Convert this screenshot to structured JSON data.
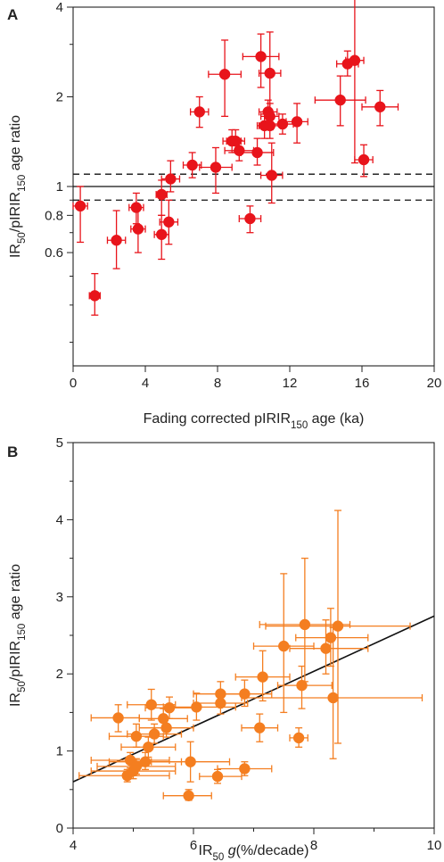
{
  "chart_data": [
    {
      "panel_label": "A",
      "type": "scatter",
      "title": "",
      "xlabel_parts": [
        "Fading corrected pIRIR",
        "150",
        " age (ka)"
      ],
      "ylabel_parts": [
        "IR",
        "50",
        "/pIRIR",
        "150",
        " age ratio"
      ],
      "x_range": [
        0,
        20
      ],
      "y_range": [
        0.25,
        4
      ],
      "y_scale": "log",
      "x_ticks": [
        0,
        4,
        8,
        12,
        16,
        20
      ],
      "x_tick_labels": [
        "0",
        "4",
        "8",
        "12",
        "16",
        "20"
      ],
      "y_ticks": [
        0.6,
        0.8,
        1,
        2,
        4
      ],
      "y_tick_labels": [
        "0.6",
        "0.8",
        "1",
        "2",
        "4"
      ],
      "y_minor_ticks": [
        0.3,
        0.4,
        0.5,
        0.7,
        0.9,
        3
      ],
      "color": "#e8141b",
      "reference_lines": [
        {
          "y": 1.0,
          "style": "solid"
        },
        {
          "y": 1.1,
          "style": "dashed"
        },
        {
          "y": 0.9,
          "style": "dashed"
        }
      ],
      "points": [
        {
          "x": 0.4,
          "y": 0.86,
          "xerr": 0.4,
          "ylo": 0.65,
          "yhi": 1.0
        },
        {
          "x": 1.2,
          "y": 0.43,
          "xerr": 0.3,
          "ylo": 0.37,
          "yhi": 0.51
        },
        {
          "x": 2.4,
          "y": 0.66,
          "xerr": 0.5,
          "ylo": 0.53,
          "yhi": 0.83
        },
        {
          "x": 3.5,
          "y": 0.85,
          "xerr": 0.4,
          "ylo": 0.75,
          "yhi": 0.95
        },
        {
          "x": 3.6,
          "y": 0.72,
          "xerr": 0.4,
          "ylo": 0.6,
          "yhi": 0.84
        },
        {
          "x": 4.9,
          "y": 0.94,
          "xerr": 0.3,
          "ylo": 0.8,
          "yhi": 1.05
        },
        {
          "x": 4.9,
          "y": 0.69,
          "xerr": 0.4,
          "ylo": 0.57,
          "yhi": 0.8
        },
        {
          "x": 5.3,
          "y": 0.76,
          "xerr": 0.5,
          "ylo": 0.64,
          "yhi": 0.9
        },
        {
          "x": 5.4,
          "y": 1.06,
          "xerr": 0.5,
          "ylo": 0.96,
          "yhi": 1.22
        },
        {
          "x": 6.6,
          "y": 1.18,
          "xerr": 0.5,
          "ylo": 1.07,
          "yhi": 1.3
        },
        {
          "x": 7.0,
          "y": 1.78,
          "xerr": 0.5,
          "ylo": 1.58,
          "yhi": 2.0
        },
        {
          "x": 7.9,
          "y": 1.16,
          "xerr": 0.9,
          "ylo": 0.95,
          "yhi": 1.35
        },
        {
          "x": 8.4,
          "y": 2.38,
          "xerr": 0.9,
          "ylo": 1.72,
          "yhi": 3.1
        },
        {
          "x": 8.8,
          "y": 1.42,
          "xerr": 0.5,
          "ylo": 1.3,
          "yhi": 1.55
        },
        {
          "x": 9.0,
          "y": 1.42,
          "xerr": 0.5,
          "ylo": 1.3,
          "yhi": 1.55
        },
        {
          "x": 9.2,
          "y": 1.32,
          "xerr": 0.8,
          "ylo": 1.22,
          "yhi": 1.43
        },
        {
          "x": 9.8,
          "y": 0.78,
          "xerr": 0.6,
          "ylo": 0.7,
          "yhi": 0.86
        },
        {
          "x": 10.2,
          "y": 1.3,
          "xerr": 0.9,
          "ylo": 1.18,
          "yhi": 1.45
        },
        {
          "x": 10.4,
          "y": 2.73,
          "xerr": 1.0,
          "ylo": 2.15,
          "yhi": 3.25
        },
        {
          "x": 10.6,
          "y": 1.6,
          "xerr": 0.4,
          "ylo": 1.45,
          "yhi": 1.75
        },
        {
          "x": 10.8,
          "y": 1.78,
          "xerr": 0.5,
          "ylo": 1.6,
          "yhi": 1.95
        },
        {
          "x": 10.9,
          "y": 2.4,
          "xerr": 0.6,
          "ylo": 1.75,
          "yhi": 3.3
        },
        {
          "x": 10.9,
          "y": 1.72,
          "xerr": 0.5,
          "ylo": 1.55,
          "yhi": 1.9
        },
        {
          "x": 10.9,
          "y": 1.6,
          "xerr": 0.6,
          "ylo": 1.45,
          "yhi": 1.75
        },
        {
          "x": 11.0,
          "y": 1.09,
          "xerr": 0.6,
          "ylo": 0.88,
          "yhi": 1.4
        },
        {
          "x": 11.6,
          "y": 1.62,
          "xerr": 0.6,
          "ylo": 1.5,
          "yhi": 1.75
        },
        {
          "x": 12.4,
          "y": 1.65,
          "xerr": 0.6,
          "ylo": 1.4,
          "yhi": 1.9
        },
        {
          "x": 14.8,
          "y": 1.95,
          "xerr": 1.4,
          "ylo": 1.6,
          "yhi": 2.35
        },
        {
          "x": 15.2,
          "y": 2.58,
          "xerr": 0.6,
          "ylo": 2.35,
          "yhi": 2.85
        },
        {
          "x": 15.6,
          "y": 2.65,
          "xerr": 0.5,
          "ylo": 1.2,
          "yhi": 4.3
        },
        {
          "x": 16.1,
          "y": 1.23,
          "xerr": 0.5,
          "ylo": 1.08,
          "yhi": 1.38
        },
        {
          "x": 17.0,
          "y": 1.85,
          "xerr": 1.0,
          "ylo": 1.6,
          "yhi": 2.1
        }
      ]
    },
    {
      "panel_label": "B",
      "type": "scatter",
      "title": "",
      "xlabel_parts": [
        "IR",
        "50",
        " ",
        "g",
        "(%/decade)"
      ],
      "ylabel_parts": [
        "IR",
        "50",
        "/pIRIR",
        "150",
        " age ratio"
      ],
      "x_range": [
        4,
        10
      ],
      "y_range": [
        0,
        5
      ],
      "y_scale": "linear",
      "x_ticks": [
        4,
        6,
        8,
        10
      ],
      "x_tick_labels": [
        "4",
        "6",
        "8",
        "10"
      ],
      "x_minor_ticks": [
        5,
        7,
        9
      ],
      "y_ticks": [
        0,
        1,
        2,
        3,
        4,
        5
      ],
      "y_tick_labels": [
        "0",
        "1",
        "2",
        "3",
        "4",
        "5"
      ],
      "y_minor_ticks": [
        0.5,
        1.5,
        2.5,
        3.5,
        4.5
      ],
      "color": "#f47e20",
      "fit_line": {
        "x": [
          4,
          10
        ],
        "y": [
          0.6,
          2.75
        ]
      },
      "points": [
        {
          "x": 4.75,
          "y": 1.43,
          "xlo": 4.3,
          "xhi": 5.1,
          "ylo": 1.25,
          "yhi": 1.6
        },
        {
          "x": 4.9,
          "y": 0.68,
          "xlo": 4.1,
          "xhi": 5.6,
          "ylo": 0.6,
          "yhi": 0.76
        },
        {
          "x": 4.95,
          "y": 0.88,
          "xlo": 4.3,
          "xhi": 5.6,
          "ylo": 0.78,
          "yhi": 0.98
        },
        {
          "x": 5.0,
          "y": 0.74,
          "xlo": 4.3,
          "xhi": 5.7,
          "ylo": 0.64,
          "yhi": 0.84
        },
        {
          "x": 5.05,
          "y": 0.8,
          "xlo": 4.4,
          "xhi": 5.7,
          "ylo": 0.7,
          "yhi": 0.9
        },
        {
          "x": 5.05,
          "y": 1.19,
          "xlo": 4.6,
          "xhi": 5.5,
          "ylo": 1.05,
          "yhi": 1.35
        },
        {
          "x": 5.2,
          "y": 0.86,
          "xlo": 4.6,
          "xhi": 5.8,
          "ylo": 0.76,
          "yhi": 0.98
        },
        {
          "x": 5.25,
          "y": 1.05,
          "xlo": 4.8,
          "xhi": 5.7,
          "ylo": 0.92,
          "yhi": 1.18
        },
        {
          "x": 5.3,
          "y": 1.6,
          "xlo": 4.9,
          "xhi": 5.7,
          "ylo": 1.4,
          "yhi": 1.8
        },
        {
          "x": 5.35,
          "y": 1.22,
          "xlo": 4.9,
          "xhi": 5.8,
          "ylo": 1.1,
          "yhi": 1.35
        },
        {
          "x": 5.5,
          "y": 1.42,
          "xlo": 5.1,
          "xhi": 5.9,
          "ylo": 1.3,
          "yhi": 1.55
        },
        {
          "x": 5.55,
          "y": 1.3,
          "xlo": 5.1,
          "xhi": 6.0,
          "ylo": 1.18,
          "yhi": 1.42
        },
        {
          "x": 5.6,
          "y": 1.56,
          "xlo": 5.2,
          "xhi": 6.0,
          "ylo": 1.42,
          "yhi": 1.7
        },
        {
          "x": 5.92,
          "y": 0.42,
          "xlo": 5.5,
          "xhi": 6.3,
          "ylo": 0.36,
          "yhi": 0.5
        },
        {
          "x": 5.95,
          "y": 0.86,
          "xlo": 5.3,
          "xhi": 6.6,
          "ylo": 0.6,
          "yhi": 1.12
        },
        {
          "x": 6.05,
          "y": 1.57,
          "xlo": 5.5,
          "xhi": 6.7,
          "ylo": 1.4,
          "yhi": 1.75
        },
        {
          "x": 6.4,
          "y": 0.67,
          "xlo": 6.1,
          "xhi": 6.8,
          "ylo": 0.58,
          "yhi": 0.76
        },
        {
          "x": 6.45,
          "y": 1.74,
          "xlo": 6.0,
          "xhi": 6.9,
          "ylo": 1.58,
          "yhi": 1.9
        },
        {
          "x": 6.45,
          "y": 1.62,
          "xlo": 6.0,
          "xhi": 6.9,
          "ylo": 1.48,
          "yhi": 1.76
        },
        {
          "x": 6.85,
          "y": 0.77,
          "xlo": 6.4,
          "xhi": 7.3,
          "ylo": 0.68,
          "yhi": 0.86
        },
        {
          "x": 6.85,
          "y": 1.74,
          "xlo": 6.4,
          "xhi": 7.3,
          "ylo": 1.58,
          "yhi": 1.92
        },
        {
          "x": 7.1,
          "y": 1.3,
          "xlo": 6.8,
          "xhi": 7.4,
          "ylo": 1.12,
          "yhi": 1.48
        },
        {
          "x": 7.15,
          "y": 1.96,
          "xlo": 6.7,
          "xhi": 7.6,
          "ylo": 1.65,
          "yhi": 2.3
        },
        {
          "x": 7.5,
          "y": 2.36,
          "xlo": 7.0,
          "xhi": 8.0,
          "ylo": 1.5,
          "yhi": 3.3
        },
        {
          "x": 7.75,
          "y": 1.17,
          "xlo": 7.6,
          "xhi": 7.9,
          "ylo": 1.05,
          "yhi": 1.3
        },
        {
          "x": 7.8,
          "y": 1.85,
          "xlo": 7.4,
          "xhi": 8.3,
          "ylo": 1.55,
          "yhi": 2.1
        },
        {
          "x": 7.85,
          "y": 2.64,
          "xlo": 7.1,
          "xhi": 8.6,
          "ylo": 1.9,
          "yhi": 3.5
        },
        {
          "x": 8.2,
          "y": 2.33,
          "xlo": 7.6,
          "xhi": 8.9,
          "ylo": 2.0,
          "yhi": 2.7
        },
        {
          "x": 8.28,
          "y": 2.47,
          "xlo": 7.7,
          "xhi": 8.9,
          "ylo": 2.1,
          "yhi": 2.85
        },
        {
          "x": 8.32,
          "y": 1.69,
          "xlo": 6.8,
          "xhi": 9.8,
          "ylo": 0.9,
          "yhi": 2.6
        },
        {
          "x": 8.4,
          "y": 2.62,
          "xlo": 7.2,
          "xhi": 9.6,
          "ylo": 1.1,
          "yhi": 4.12
        }
      ]
    }
  ]
}
